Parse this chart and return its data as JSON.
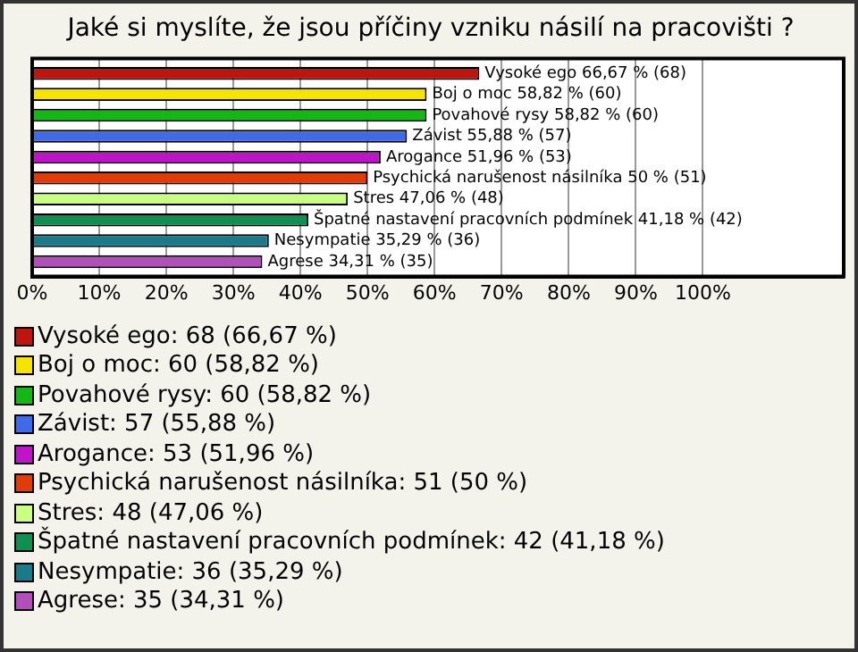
{
  "chart_data": {
    "type": "bar",
    "orientation": "horizontal",
    "title": "Jaké si myslíte, že jsou příčiny vzniku násilí na pracovišti ?",
    "categories": [
      null
    ],
    "series": [
      {
        "name": "Vysoké ego: 68 (66,67 %)",
        "color": "#c0150f",
        "values": [
          66.67
        ],
        "value_labels": [
          "Vysoké ego 66,67 % (68)"
        ]
      },
      {
        "name": "Boj o moc: 60 (58,82 %)",
        "color": "#f5e400",
        "values": [
          58.82
        ],
        "value_labels": [
          "Boj o moc 58,82 % (60)"
        ]
      },
      {
        "name": "Povahové rysy: 60 (58,82 %)",
        "color": "#14b814",
        "values": [
          58.82
        ],
        "value_labels": [
          "Povahové rysy 58,82 % (60)"
        ]
      },
      {
        "name": "Závist: 57 (55,88 %)",
        "color": "#3f6be8",
        "values": [
          55.88
        ],
        "value_labels": [
          "Závist 55,88 % (57)"
        ]
      },
      {
        "name": "Arogance: 53 (51,96 %)",
        "color": "#c014c8",
        "values": [
          51.96
        ],
        "value_labels": [
          "Arogance 51,96 % (53)"
        ]
      },
      {
        "name": "Psychická narušenost násilníka: 51 (50 %)",
        "color": "#e03c0a",
        "values": [
          50
        ],
        "value_labels": [
          "Psychická narušenost násilníka 50 % (51)"
        ]
      },
      {
        "name": "Stres: 48 (47,06 %)",
        "color": "#c8ff80",
        "values": [
          47.06
        ],
        "value_labels": [
          "Stres 47,06 % (48)"
        ]
      },
      {
        "name": "Špatné nastavení pracovních podmínek: 42 (41,18 %)",
        "color": "#109050",
        "values": [
          41.18
        ],
        "value_labels": [
          "Špatné nastavení pracovních podmínek 41,18 % (42)"
        ]
      },
      {
        "name": "Nesympatie: 36 (35,29 %)",
        "color": "#1a7a8a",
        "values": [
          35.29
        ],
        "value_labels": [
          "Nesympatie 35,29 % (36)"
        ]
      },
      {
        "name": "Agrese: 35 (34,31 %)",
        "color": "#b050b8",
        "values": [
          34.31
        ],
        "value_labels": [
          "Agrese 34,31 % (35)"
        ]
      }
    ],
    "xlim": [
      0,
      121
    ],
    "xticks": [
      {
        "value": 0,
        "label": "0%"
      },
      {
        "value": 10,
        "label": "10%"
      },
      {
        "value": 20,
        "label": "20%"
      },
      {
        "value": 30,
        "label": "30%"
      },
      {
        "value": 40,
        "label": "40%"
      },
      {
        "value": 50,
        "label": "50%"
      },
      {
        "value": 60,
        "label": "60%"
      },
      {
        "value": 70,
        "label": "70%"
      },
      {
        "value": 80,
        "label": "80%"
      },
      {
        "value": 90,
        "label": "90%"
      },
      {
        "value": 100,
        "label": "100%"
      }
    ],
    "grid": "x",
    "legend": "bottom",
    "tick_labels": "x"
  }
}
